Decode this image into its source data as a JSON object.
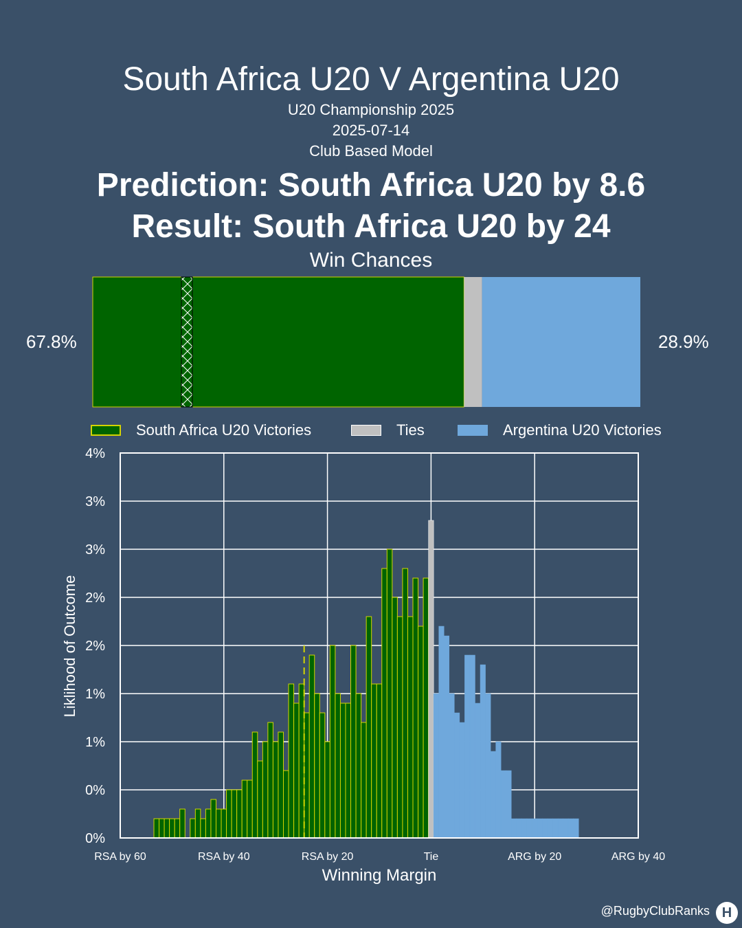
{
  "header": {
    "title": "South Africa U20 V Argentina U20",
    "competition": "U20 Championship 2025",
    "date": "2025-07-14",
    "model": "Club Based Model",
    "prediction": "Prediction: South Africa U20 by 8.6",
    "result": "Result: South Africa U20 by 24"
  },
  "win_chances": {
    "title": "Win Chances",
    "home_label": "67.8%",
    "away_label": "28.9%",
    "home_pct": 67.8,
    "tie_pct": 3.3,
    "away_pct": 28.9,
    "actual_margin": -24
  },
  "legend": {
    "home": "South Africa U20 Victories",
    "tie": "Ties",
    "away": "Argentina U20 Victories"
  },
  "colors": {
    "background": "#3a5068",
    "home": "#006400",
    "home_edge": "#d4d400",
    "tie": "#c0c0c0",
    "away": "#6fa8dc"
  },
  "footer": {
    "credit": "@RugbyClubRanks",
    "logo": "H"
  },
  "chart_data": {
    "type": "bar",
    "xlabel": "Winning Margin",
    "ylabel": "Liklihood of Outcome",
    "xlim": [
      -60,
      40
    ],
    "ylim": [
      0,
      4
    ],
    "grid": true,
    "x_ticks": [
      {
        "value": -60,
        "label": "RSA by 60"
      },
      {
        "value": -40,
        "label": "RSA by 40"
      },
      {
        "value": -20,
        "label": "RSA by 20"
      },
      {
        "value": 0,
        "label": "Tie"
      },
      {
        "value": 20,
        "label": "ARG by 20"
      },
      {
        "value": 40,
        "label": "ARG by 40"
      }
    ],
    "y_ticks": [
      {
        "value": 0,
        "label": "0%"
      },
      {
        "value": 0.5,
        "label": "0%"
      },
      {
        "value": 1.0,
        "label": "1%"
      },
      {
        "value": 1.5,
        "label": "1%"
      },
      {
        "value": 2.0,
        "label": "2%"
      },
      {
        "value": 2.5,
        "label": "2%"
      },
      {
        "value": 3.0,
        "label": "3%"
      },
      {
        "value": 3.5,
        "label": "3%"
      },
      {
        "value": 4.0,
        "label": "4%"
      }
    ],
    "home_series": {
      "name": "South Africa U20 Victories",
      "x": [
        -53,
        -52,
        -51,
        -50,
        -49,
        -48,
        -46,
        -45,
        -44,
        -43,
        -42,
        -41,
        -40,
        -39,
        -38,
        -37,
        -36,
        -35,
        -34,
        -33,
        -32,
        -31,
        -30,
        -29,
        -28,
        -27,
        -26,
        -25,
        -24,
        -23,
        -22,
        -21,
        -20,
        -19,
        -18,
        -17,
        -16,
        -15,
        -14,
        -13,
        -12,
        -11,
        -10,
        -9,
        -8,
        -7,
        -6,
        -5,
        -4,
        -3,
        -2,
        -1
      ],
      "values": [
        0.2,
        0.2,
        0.2,
        0.2,
        0.2,
        0.3,
        0.2,
        0.3,
        0.2,
        0.3,
        0.4,
        0.3,
        0.3,
        0.5,
        0.5,
        0.5,
        0.6,
        0.6,
        1.1,
        0.8,
        1.0,
        1.2,
        1.0,
        1.1,
        0.7,
        1.6,
        1.4,
        1.6,
        1.3,
        1.9,
        1.5,
        1.3,
        1.0,
        2.0,
        1.5,
        1.4,
        1.4,
        2.0,
        1.5,
        1.2,
        2.3,
        1.6,
        1.6,
        2.8,
        3.0,
        2.5,
        2.3,
        2.8,
        2.3,
        2.7,
        2.2,
        2.7
      ]
    },
    "tie_series": {
      "name": "Ties",
      "x": [
        0
      ],
      "values": [
        3.3
      ]
    },
    "away_series": {
      "name": "Argentina U20 Victories",
      "x": [
        1,
        2,
        3,
        4,
        5,
        6,
        7,
        8,
        9,
        10,
        11,
        12,
        13,
        14,
        15,
        16,
        17,
        18,
        19,
        20,
        21,
        22,
        23,
        24,
        25,
        26,
        27,
        28
      ],
      "values": [
        1.5,
        2.2,
        2.1,
        1.5,
        1.3,
        1.2,
        1.9,
        1.9,
        1.4,
        1.8,
        1.5,
        0.9,
        1.0,
        0.7,
        0.7,
        0.2,
        0.2,
        0.2,
        0.2,
        0.2,
        0.2,
        0.2,
        0.2,
        0.2,
        0.2,
        0.2,
        0.2,
        0.2
      ]
    }
  }
}
